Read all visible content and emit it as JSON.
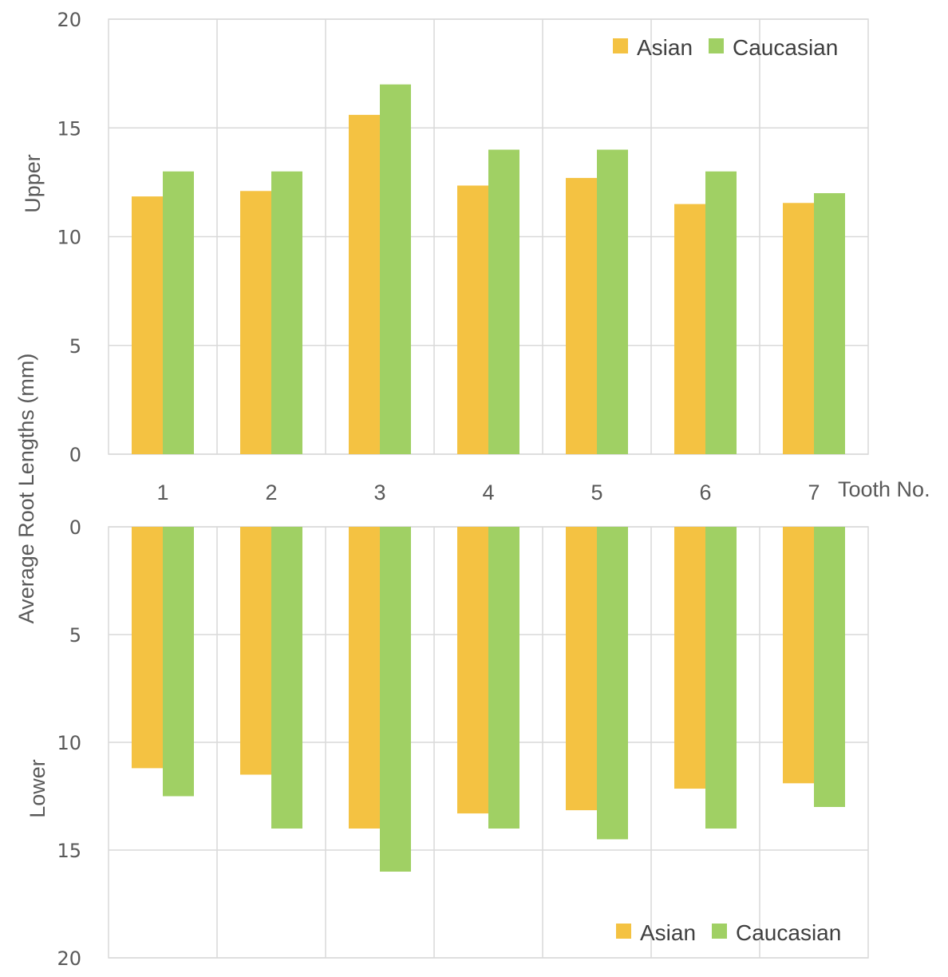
{
  "chart_data": {
    "type": "bar",
    "title": "",
    "ylabel": "Average Root Lengths (mm)",
    "xlabel": "Tooth No.",
    "categories": [
      "1",
      "2",
      "3",
      "4",
      "5",
      "6",
      "7"
    ],
    "colors": {
      "Asian": "#f4c242",
      "Caucasian": "#a0d064"
    },
    "panels": [
      {
        "name": "Upper",
        "label": "Upper",
        "orientation": "up",
        "ylim": [
          0,
          20
        ],
        "yticks": [
          0,
          5,
          10,
          15,
          20
        ],
        "grid": true,
        "legend_position": "top-right",
        "series": [
          {
            "name": "Asian",
            "values": [
              11.85,
              12.1,
              15.6,
              12.35,
              12.7,
              11.5,
              11.55
            ]
          },
          {
            "name": "Caucasian",
            "values": [
              13,
              13,
              17,
              14,
              14,
              13,
              12
            ]
          }
        ]
      },
      {
        "name": "Lower",
        "label": "Lower",
        "orientation": "down",
        "ylim": [
          0,
          20
        ],
        "yticks": [
          0,
          5,
          10,
          15,
          20
        ],
        "grid": true,
        "legend_position": "bottom-right",
        "series": [
          {
            "name": "Asian",
            "values": [
              11.2,
              11.5,
              14.0,
              13.3,
              13.15,
              12.15,
              11.9
            ]
          },
          {
            "name": "Caucasian",
            "values": [
              12.5,
              14,
              16,
              14,
              14.5,
              14,
              13
            ]
          }
        ]
      }
    ]
  }
}
